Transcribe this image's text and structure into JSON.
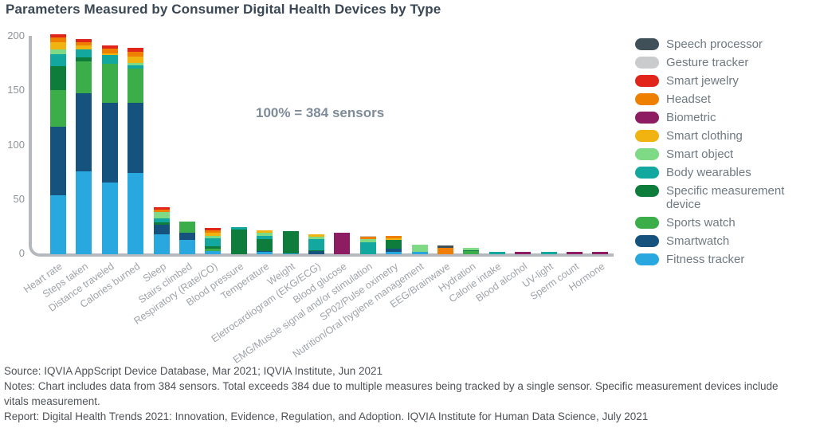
{
  "title": "Parameters Measured by Consumer Digital Health Devices by Type",
  "annotation": "100% = 384 sensors",
  "footer": {
    "source": "Source: IQVIA AppScript Device Database, Mar 2021; IQVIA Institute, Jun 2021",
    "notes": "Notes: Chart includes data from 384 sensors. Total exceeds 384 due to multiple measures being tracked by a single sensor. Specific measurement devices include vitals measurement.",
    "report": "Report: Digital Health Trends 2021: Innovation, Evidence, Regulation, and Adoption. IQVIA Institute for Human Data Science, July 2021"
  },
  "chart_data": {
    "type": "bar",
    "stacked": true,
    "title": "Parameters Measured by Consumer Digital Health Devices by Type",
    "annotation": "100% = 384 sensors",
    "xlabel": "",
    "ylabel": "",
    "ylim": [
      0,
      200
    ],
    "yticks": [
      0,
      50,
      100,
      150,
      200
    ],
    "grid": false,
    "legend_position": "right",
    "categories": [
      "Heart rate",
      "Steps taken",
      "Distance traveled",
      "Calories burned",
      "Sleep",
      "Stairs climbed",
      "Respiratory (Rate/CO)",
      "Blood pressure",
      "Temperature",
      "Weight",
      "Eletrocardiogram (EKG/ECG)",
      "Blood glucose",
      "EMG/Muscle signal and/or stimulation",
      "SP02/Pulse oximetry",
      "Nutrition/Oral hygiene management",
      "EEG/Brainwave",
      "Hydration",
      "Calorie intake",
      "Blood alcohol",
      "UV-light",
      "Sperm count",
      "Hormone"
    ],
    "series_note": "series listed bottom-to-top of stack; legend shows reverse order",
    "series": [
      {
        "name": "Fitness tracker",
        "color": "#29A8E0",
        "values": [
          54,
          76,
          66,
          75,
          18,
          13,
          3,
          0,
          2,
          1,
          0,
          0,
          0,
          2,
          2,
          0,
          0,
          0,
          0,
          0,
          0,
          0
        ]
      },
      {
        "name": "Smartwatch",
        "color": "#15537E",
        "values": [
          63,
          72,
          73,
          64,
          9,
          7,
          0,
          0,
          1,
          0,
          3,
          0,
          0,
          3,
          0,
          0,
          0,
          0,
          0,
          0,
          0,
          0
        ]
      },
      {
        "name": "Sports watch",
        "color": "#3BAE49",
        "values": [
          34,
          29,
          36,
          32,
          0,
          10,
          2,
          0,
          0,
          0,
          0,
          0,
          0,
          0,
          0,
          0,
          3,
          0,
          0,
          0,
          0,
          0
        ]
      },
      {
        "name": "Specific measurement device",
        "color": "#0E7C3B",
        "values": [
          22,
          4,
          0,
          0,
          2,
          0,
          2,
          23,
          11,
          20,
          1,
          0,
          0,
          8,
          0,
          0,
          1,
          0,
          0,
          0,
          0,
          0
        ]
      },
      {
        "name": "Body wearables",
        "color": "#12A79F",
        "values": [
          11,
          7,
          8,
          3,
          4,
          0,
          8,
          2,
          3,
          0,
          10,
          0,
          11,
          0,
          0,
          0,
          0,
          2,
          0,
          2,
          0,
          0
        ]
      },
      {
        "name": "Smart object",
        "color": "#7EDA85",
        "values": [
          4,
          0,
          0,
          2,
          6,
          0,
          2,
          0,
          3,
          0,
          2,
          0,
          3,
          0,
          7,
          0,
          2,
          0,
          0,
          0,
          0,
          0
        ]
      },
      {
        "name": "Smart clothing",
        "color": "#F0B310",
        "values": [
          7,
          4,
          2,
          6,
          0,
          0,
          3,
          0,
          2,
          0,
          2,
          0,
          0,
          2,
          0,
          0,
          0,
          0,
          0,
          0,
          0,
          0
        ]
      },
      {
        "name": "Biometric",
        "color": "#8E1C62",
        "values": [
          0,
          0,
          0,
          0,
          0,
          0,
          0,
          0,
          0,
          0,
          0,
          20,
          0,
          0,
          0,
          0,
          0,
          0,
          2,
          0,
          2,
          2
        ]
      },
      {
        "name": "Headset",
        "color": "#EE7F00",
        "values": [
          4,
          3,
          4,
          4,
          2,
          0,
          2,
          0,
          0,
          0,
          0,
          0,
          2,
          2,
          0,
          6,
          0,
          0,
          0,
          0,
          0,
          0
        ]
      },
      {
        "name": "Smart jewelry",
        "color": "#E1251B",
        "values": [
          3,
          3,
          3,
          4,
          2,
          0,
          2,
          0,
          0,
          0,
          0,
          0,
          0,
          0,
          0,
          0,
          0,
          0,
          0,
          0,
          0,
          0
        ]
      },
      {
        "name": "Gesture tracker",
        "color": "#C9CBCD",
        "values": [
          0,
          0,
          0,
          0,
          0,
          0,
          0,
          0,
          0,
          0,
          0,
          0,
          1,
          0,
          0,
          0,
          0,
          0,
          0,
          0,
          0,
          0
        ]
      },
      {
        "name": "Speech processor",
        "color": "#3F5059",
        "values": [
          0,
          0,
          0,
          0,
          0,
          0,
          0,
          0,
          0,
          0,
          0,
          0,
          0,
          0,
          0,
          2,
          0,
          0,
          0,
          0,
          0,
          0
        ]
      }
    ]
  }
}
